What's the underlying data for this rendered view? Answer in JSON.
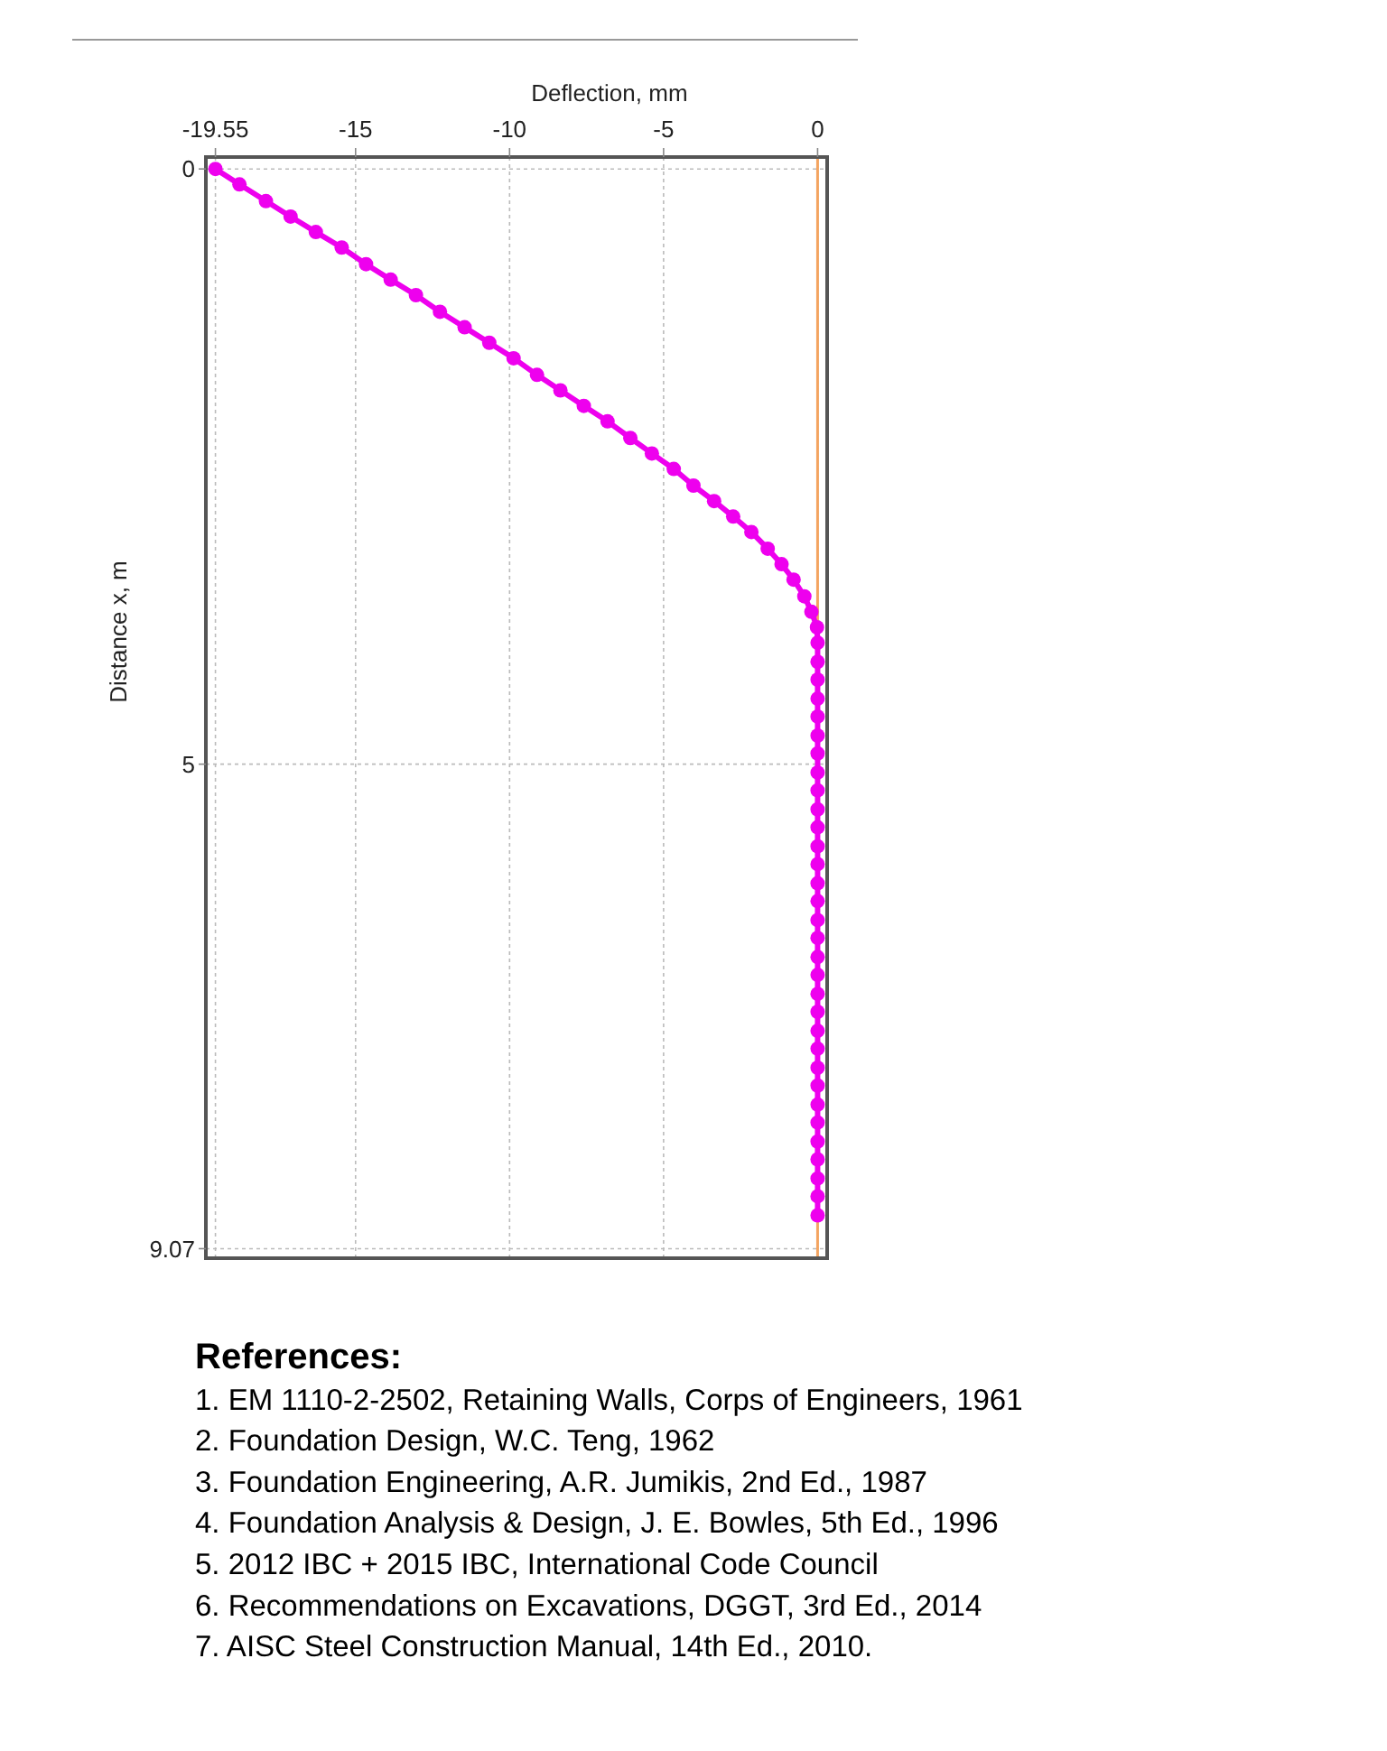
{
  "chart_data": {
    "type": "line",
    "xlabel": "Deflection, mm",
    "ylabel": "Distance x, m",
    "xlim": [
      -19.86,
      0.31
    ],
    "xticks": [
      -19.55,
      -15,
      -10,
      -5,
      0
    ],
    "ylim": [
      9.15,
      -0.1
    ],
    "yticks": [
      0,
      5,
      9.07
    ],
    "grid": true,
    "marker": "circle",
    "line_style": "solid",
    "series": [
      {
        "color": "#ee00ee",
        "x": [
          -19.55,
          -18.77,
          -17.91,
          -17.11,
          -16.29,
          -15.45,
          -14.66,
          -13.86,
          -13.04,
          -12.26,
          -11.46,
          -10.66,
          -9.87,
          -9.11,
          -8.35,
          -7.59,
          -6.82,
          -6.08,
          -5.38,
          -4.67,
          -4.03,
          -3.36,
          -2.74,
          -2.15,
          -1.62,
          -1.17,
          -0.78,
          -0.43,
          -0.2,
          -0.02,
          0,
          0,
          0,
          0,
          0,
          0,
          0,
          0,
          0,
          0,
          0,
          0,
          0,
          0,
          0,
          0,
          0,
          0,
          0,
          0,
          0,
          0,
          0,
          0,
          0,
          0,
          0,
          0,
          0,
          0,
          0,
          0
        ],
        "values": [
          0,
          0.13,
          0.27,
          0.4,
          0.53,
          0.66,
          0.8,
          0.93,
          1.06,
          1.2,
          1.33,
          1.46,
          1.59,
          1.73,
          1.86,
          1.99,
          2.12,
          2.26,
          2.39,
          2.52,
          2.66,
          2.79,
          2.92,
          3.05,
          3.19,
          3.32,
          3.45,
          3.59,
          3.72,
          3.85,
          3.98,
          4.14,
          4.29,
          4.45,
          4.6,
          4.76,
          4.91,
          5.07,
          5.22,
          5.38,
          5.53,
          5.69,
          5.84,
          6.0,
          6.15,
          6.31,
          6.46,
          6.62,
          6.77,
          6.93,
          7.08,
          7.24,
          7.39,
          7.55,
          7.7,
          7.86,
          8.01,
          8.17,
          8.32,
          8.48,
          8.63,
          8.79
        ]
      }
    ],
    "ref_lines": [
      {
        "axis": "x",
        "value": 0,
        "color": "#f4a460"
      }
    ],
    "annotations": [
      "References:",
      "1. EM 1110-2-2502, Retaining Walls, Corps of Engineers, 1961",
      "2. Foundation Design, W.C. Teng, 1962",
      "3. Foundation Engineering, A.R. Jumikis, 2nd Ed., 1987",
      "4. Foundation Analysis & Design, J. E. Bowles, 5th Ed., 1996",
      "5. 2012 IBC + 2015 IBC, International Code Council",
      "6. Recommendations on Excavations, DGGT, 3rd Ed., 2014",
      "7. AISC Steel Construction Manual, 14th Ed., 2010."
    ]
  }
}
